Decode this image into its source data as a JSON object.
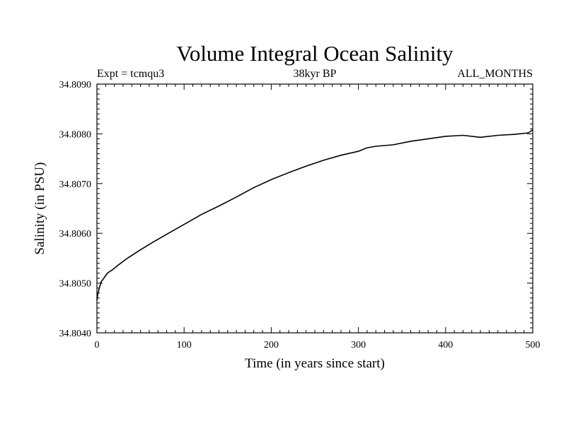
{
  "chart_data": {
    "type": "line",
    "title": "Volume Integral Ocean Salinity",
    "subtitle_left": "Expt = tcmqu3",
    "subtitle_center": "38kyr BP",
    "subtitle_right": "ALL_MONTHS",
    "xlabel": "Time (in years since start)",
    "ylabel": "Salinity (in PSU)",
    "xlim": [
      0,
      500
    ],
    "ylim": [
      34.804,
      34.809
    ],
    "xticks": [
      0,
      100,
      200,
      300,
      400,
      500
    ],
    "xtick_labels": [
      "0",
      "100",
      "200",
      "300",
      "400",
      "500"
    ],
    "yticks": [
      34.804,
      34.805,
      34.806,
      34.807,
      34.808,
      34.809
    ],
    "ytick_labels": [
      "34.8040",
      "34.8050",
      "34.8060",
      "34.8070",
      "34.8080",
      "34.8090"
    ],
    "grid": false,
    "series": [
      {
        "name": "Salinity",
        "color": "#000000",
        "x": [
          0,
          1,
          3,
          5,
          8,
          12,
          18,
          25,
          35,
          50,
          65,
          80,
          100,
          120,
          140,
          160,
          180,
          200,
          220,
          240,
          260,
          280,
          300,
          310,
          320,
          340,
          360,
          380,
          400,
          420,
          440,
          460,
          480,
          495,
          500
        ],
        "y": [
          34.80465,
          34.80478,
          34.80492,
          34.80503,
          34.8051,
          34.8052,
          34.80527,
          34.80537,
          34.8055,
          34.80567,
          34.80583,
          34.80598,
          34.80618,
          34.80638,
          34.80655,
          34.80673,
          34.80692,
          34.80708,
          34.80722,
          34.80735,
          34.80747,
          34.80757,
          34.80765,
          34.80772,
          34.80775,
          34.80778,
          34.80785,
          34.8079,
          34.80795,
          34.80797,
          34.80793,
          34.80797,
          34.80799,
          34.80802,
          34.80808
        ]
      }
    ]
  }
}
